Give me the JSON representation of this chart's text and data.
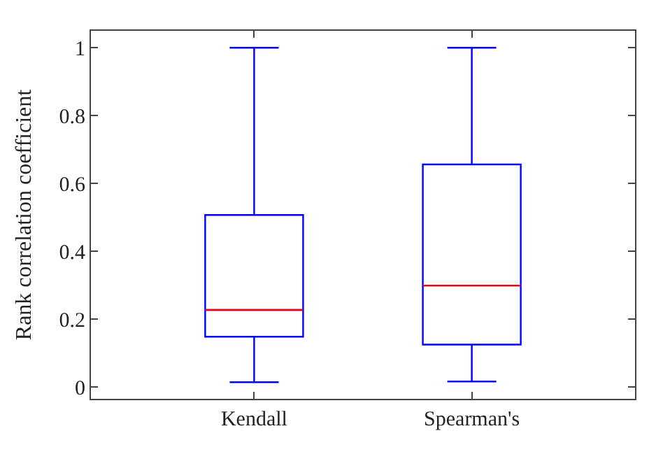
{
  "chart_data": {
    "type": "box",
    "ylabel": "Rank correlation coefficient",
    "categories": [
      "Kendall",
      "Spearman's"
    ],
    "series": [
      {
        "color": "#0000ff",
        "boxes": [
          {
            "low": 0.014,
            "q1": 0.148,
            "median": 0.227,
            "q3": 0.507,
            "high": 1
          },
          {
            "low": 0.016,
            "q1": 0.125,
            "median": 0.299,
            "q3": 0.656,
            "high": 1
          }
        ]
      }
    ],
    "ylim": [
      -0.035,
      1.05
    ],
    "yticks": [
      0,
      0.2,
      0.4,
      0.6,
      0.8,
      1
    ]
  }
}
